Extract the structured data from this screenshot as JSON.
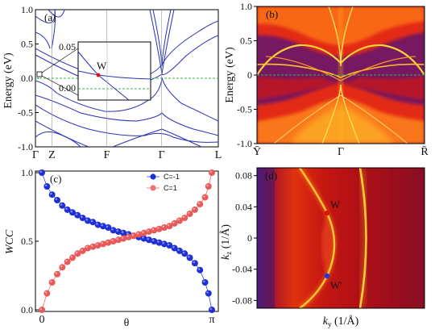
{
  "chart_data": [
    {
      "panel": "(a)",
      "type": "line",
      "ylabel": "Energy (eV)",
      "ylim": [
        -1.0,
        1.0
      ],
      "yticks": [
        "1.0",
        "0.5",
        "0.0",
        "-0.5",
        "-1.0"
      ],
      "kpath": [
        "Γ",
        "Z",
        "F",
        "Γ",
        "L"
      ],
      "fermi_level": 0.0,
      "inset": {
        "yticks": [
          "0.05",
          "0.00"
        ],
        "label": "W"
      }
    },
    {
      "panel": "(b)",
      "type": "heatmap",
      "ylabel": "Energy (eV)",
      "ylim": [
        -1.0,
        1.0
      ],
      "yticks": [
        "1.0",
        "0.5",
        "0",
        "-0.5",
        "-1.0"
      ],
      "kpath": [
        "Ȳ",
        "Γ",
        "R̄"
      ]
    },
    {
      "panel": "(c)",
      "type": "scatter",
      "xlabel": "θ",
      "ylabel": "WCC",
      "xticks": [
        "0",
        "π"
      ],
      "yticks": [
        "1.0",
        "0.5",
        "0.0"
      ],
      "ylim": [
        0,
        1
      ],
      "legend": "top-right",
      "series": [
        {
          "name": "C=-1",
          "color": "#1f2fd6",
          "theta": [
            0.0,
            0.03,
            0.06,
            0.09,
            0.12,
            0.15,
            0.18,
            0.21,
            0.24,
            0.27,
            0.3,
            0.33,
            0.36,
            0.39,
            0.42,
            0.45,
            0.48,
            0.51,
            0.54,
            0.57,
            0.6,
            0.63,
            0.66,
            0.69,
            0.72,
            0.75,
            0.78,
            0.81,
            0.84,
            0.87,
            0.9,
            0.93,
            0.96,
            0.98,
            1.0
          ],
          "wcc": [
            1.0,
            0.9,
            0.84,
            0.8,
            0.76,
            0.73,
            0.71,
            0.69,
            0.67,
            0.65,
            0.64,
            0.62,
            0.61,
            0.6,
            0.58,
            0.57,
            0.56,
            0.55,
            0.54,
            0.53,
            0.52,
            0.51,
            0.5,
            0.49,
            0.48,
            0.47,
            0.45,
            0.43,
            0.41,
            0.38,
            0.34,
            0.29,
            0.2,
            0.12,
            0.0
          ]
        },
        {
          "name": "C=1",
          "color": "#e85a5a",
          "theta": [
            0.0,
            0.03,
            0.06,
            0.09,
            0.12,
            0.15,
            0.18,
            0.21,
            0.24,
            0.27,
            0.3,
            0.33,
            0.36,
            0.39,
            0.42,
            0.45,
            0.48,
            0.51,
            0.54,
            0.57,
            0.6,
            0.63,
            0.66,
            0.69,
            0.72,
            0.75,
            0.78,
            0.81,
            0.84,
            0.87,
            0.9,
            0.93,
            0.96,
            0.98,
            1.0
          ],
          "wcc": [
            0.0,
            0.12,
            0.2,
            0.26,
            0.31,
            0.35,
            0.38,
            0.41,
            0.43,
            0.45,
            0.46,
            0.47,
            0.48,
            0.49,
            0.5,
            0.51,
            0.52,
            0.53,
            0.54,
            0.55,
            0.56,
            0.57,
            0.58,
            0.59,
            0.6,
            0.61,
            0.63,
            0.65,
            0.67,
            0.7,
            0.73,
            0.77,
            0.82,
            0.9,
            1.0
          ]
        }
      ]
    },
    {
      "panel": "(d)",
      "type": "heatmap",
      "xlabel": "k_y (1/Å)",
      "ylabel": "k_z (1/Å)",
      "ylim": [
        -0.09,
        0.09
      ],
      "yticks": [
        "0.08",
        "0.04",
        "0",
        "-0.04",
        "-0.08"
      ],
      "weyl_points": [
        {
          "label": "W",
          "kz": 0.04
        },
        {
          "label": "W'",
          "kz": -0.04
        }
      ]
    }
  ],
  "labels": {
    "a": "(a)",
    "b": "(b)",
    "c": "(c)",
    "d": "(d)",
    "energy": "Energy (eV)",
    "wcc": "WCC",
    "theta": "θ",
    "ky": "k",
    "ky_sub": "y",
    "ky_unit": " (1/Å)",
    "kz": "k",
    "kz_sub": "z",
    "kz_unit": " (1/Å)",
    "W": "W",
    "Wp": "W'"
  }
}
